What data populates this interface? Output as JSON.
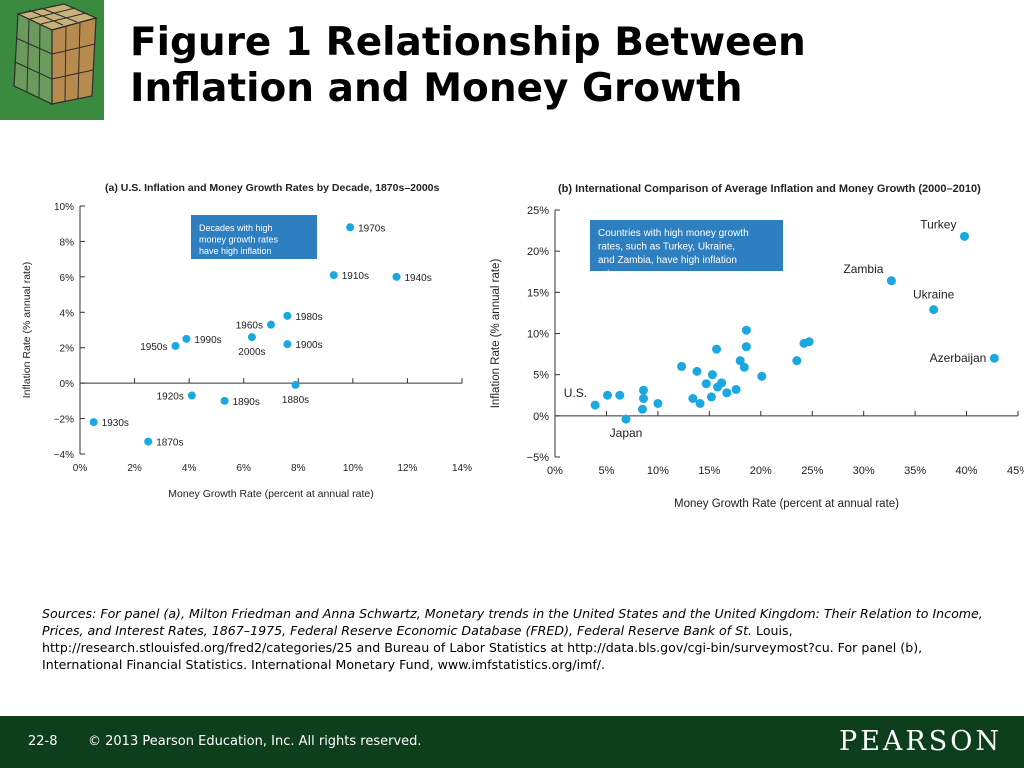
{
  "slide": {
    "title_line1": "Figure 1  Relationship Between",
    "title_line2": "Inflation and Money Growth",
    "slide_number": "22-8",
    "copyright": "© 2013 Pearson Education, Inc. All rights reserved.",
    "publisher": "PEARSON",
    "sources_italic": "Sources: For panel (a), Milton Friedman and Anna Schwartz, Monetary trends in the United States and the United Kingdom: Their Relation to Income, Prices, and Interest Rates, 1867–1975, Federal Reserve Economic Database (FRED), Federal Reserve Bank of St.",
    "sources_rest": " Louis, http://research.stlouisfed.org/fred2/categories/25 and Bureau of Labor Statistics at http://data.bls.gov/cgi-bin/surveymost?cu. For panel (b), International Financial Statistics. International Monetary Fund, www.imfstatistics.org/imf/."
  },
  "colors": {
    "point": "#1aa8e0",
    "callout": "#2e7fbf",
    "footer": "#0e3f1d",
    "logo": "#3a8a3f"
  },
  "chart_data": [
    {
      "type": "scatter",
      "title": "(a) U.S. Inflation and Money Growth Rates by Decade, 1870s–2000s",
      "xlabel": "Money Growth Rate (percent at annual rate)",
      "ylabel": "Inflation Rate (% annual rate)",
      "xlim": [
        0,
        14
      ],
      "ylim": [
        -4,
        10
      ],
      "xticks": [
        0,
        2,
        4,
        6,
        8,
        10,
        12,
        14
      ],
      "xtick_labels": [
        "0%",
        "2%",
        "4%",
        "6%",
        "8%",
        "10%",
        "12%",
        "14%"
      ],
      "yticks": [
        -4,
        -2,
        0,
        2,
        4,
        6,
        8,
        10
      ],
      "ytick_labels": [
        "−4%",
        "−2%",
        "0%",
        "2%",
        "4%",
        "6%",
        "8%",
        "10%"
      ],
      "grid": false,
      "callout": "Decades with high money growth rates have high inflation rates",
      "points": [
        {
          "label": "1870s",
          "x": 2.5,
          "y": -3.3,
          "label_pos": "right"
        },
        {
          "label": "1880s",
          "x": 7.9,
          "y": -0.1,
          "label_pos": "below"
        },
        {
          "label": "1890s",
          "x": 5.3,
          "y": -1.0,
          "label_pos": "right"
        },
        {
          "label": "1900s",
          "x": 7.6,
          "y": 2.2,
          "label_pos": "right"
        },
        {
          "label": "1910s",
          "x": 9.3,
          "y": 6.1,
          "label_pos": "right"
        },
        {
          "label": "1920s",
          "x": 4.1,
          "y": -0.7,
          "label_pos": "left"
        },
        {
          "label": "1930s",
          "x": 0.5,
          "y": -2.2,
          "label_pos": "right"
        },
        {
          "label": "1940s",
          "x": 11.6,
          "y": 6.0,
          "label_pos": "right"
        },
        {
          "label": "1950s",
          "x": 3.5,
          "y": 2.1,
          "label_pos": "left"
        },
        {
          "label": "1960s",
          "x": 7.0,
          "y": 3.3,
          "label_pos": "left"
        },
        {
          "label": "1970s",
          "x": 9.9,
          "y": 8.8,
          "label_pos": "right"
        },
        {
          "label": "1980s",
          "x": 7.6,
          "y": 3.8,
          "label_pos": "right"
        },
        {
          "label": "1990s",
          "x": 3.9,
          "y": 2.5,
          "label_pos": "right"
        },
        {
          "label": "2000s",
          "x": 6.3,
          "y": 2.6,
          "label_pos": "below"
        }
      ]
    },
    {
      "type": "scatter",
      "title": "(b) International Comparison of Average Inflation and Money Growth (2000–2010)",
      "xlabel": "Money Growth Rate (percent at annual rate)",
      "ylabel": "Inflation Rate (% annual rate)",
      "xlim": [
        0,
        45
      ],
      "ylim": [
        -5,
        25
      ],
      "xticks": [
        0,
        5,
        10,
        15,
        20,
        25,
        30,
        35,
        40,
        45
      ],
      "xtick_labels": [
        "0%",
        "5%",
        "10%",
        "15%",
        "20%",
        "25%",
        "30%",
        "35%",
        "40%",
        "45%"
      ],
      "yticks": [
        -5,
        0,
        5,
        10,
        15,
        20,
        25
      ],
      "ytick_labels": [
        "−5%",
        "0%",
        "5%",
        "10%",
        "15%",
        "20%",
        "25%"
      ],
      "grid": false,
      "callout": "Countries with high money growth rates, such as Turkey, Ukraine, and Zambia, have high inflation rates",
      "points": [
        {
          "label": "U.S.",
          "x": 3.9,
          "y": 1.3,
          "label_pos": "above-left"
        },
        {
          "label": "Japan",
          "x": 6.9,
          "y": -0.4,
          "label_pos": "below"
        },
        {
          "label": "",
          "x": 5.1,
          "y": 2.5
        },
        {
          "label": "",
          "x": 6.3,
          "y": 2.5
        },
        {
          "label": "",
          "x": 8.5,
          "y": 0.8
        },
        {
          "label": "",
          "x": 8.6,
          "y": 2.1
        },
        {
          "label": "",
          "x": 8.6,
          "y": 3.1
        },
        {
          "label": "",
          "x": 10.0,
          "y": 1.5
        },
        {
          "label": "",
          "x": 12.3,
          "y": 6.0
        },
        {
          "label": "",
          "x": 13.4,
          "y": 2.1
        },
        {
          "label": "",
          "x": 13.8,
          "y": 5.4
        },
        {
          "label": "",
          "x": 14.1,
          "y": 1.5
        },
        {
          "label": "",
          "x": 14.7,
          "y": 3.9
        },
        {
          "label": "",
          "x": 15.2,
          "y": 2.3
        },
        {
          "label": "",
          "x": 15.3,
          "y": 5.0
        },
        {
          "label": "",
          "x": 15.7,
          "y": 8.1
        },
        {
          "label": "",
          "x": 15.8,
          "y": 3.5
        },
        {
          "label": "",
          "x": 16.2,
          "y": 4.0
        },
        {
          "label": "",
          "x": 16.7,
          "y": 2.8
        },
        {
          "label": "",
          "x": 17.6,
          "y": 3.2
        },
        {
          "label": "",
          "x": 18.0,
          "y": 6.7
        },
        {
          "label": "",
          "x": 18.4,
          "y": 5.9
        },
        {
          "label": "",
          "x": 18.6,
          "y": 8.4
        },
        {
          "label": "",
          "x": 18.6,
          "y": 10.4
        },
        {
          "label": "",
          "x": 20.1,
          "y": 4.8
        },
        {
          "label": "",
          "x": 23.5,
          "y": 6.7
        },
        {
          "label": "",
          "x": 24.2,
          "y": 8.8
        },
        {
          "label": "",
          "x": 24.7,
          "y": 9.0
        },
        {
          "label": "Zambia",
          "x": 32.7,
          "y": 16.4,
          "label_pos": "above-left"
        },
        {
          "label": "Ukraine",
          "x": 36.8,
          "y": 12.9,
          "label_pos": "above"
        },
        {
          "label": "Turkey",
          "x": 39.8,
          "y": 21.8,
          "label_pos": "above-left"
        },
        {
          "label": "Azerbaijan",
          "x": 42.7,
          "y": 7.0,
          "label_pos": "left"
        }
      ]
    }
  ]
}
